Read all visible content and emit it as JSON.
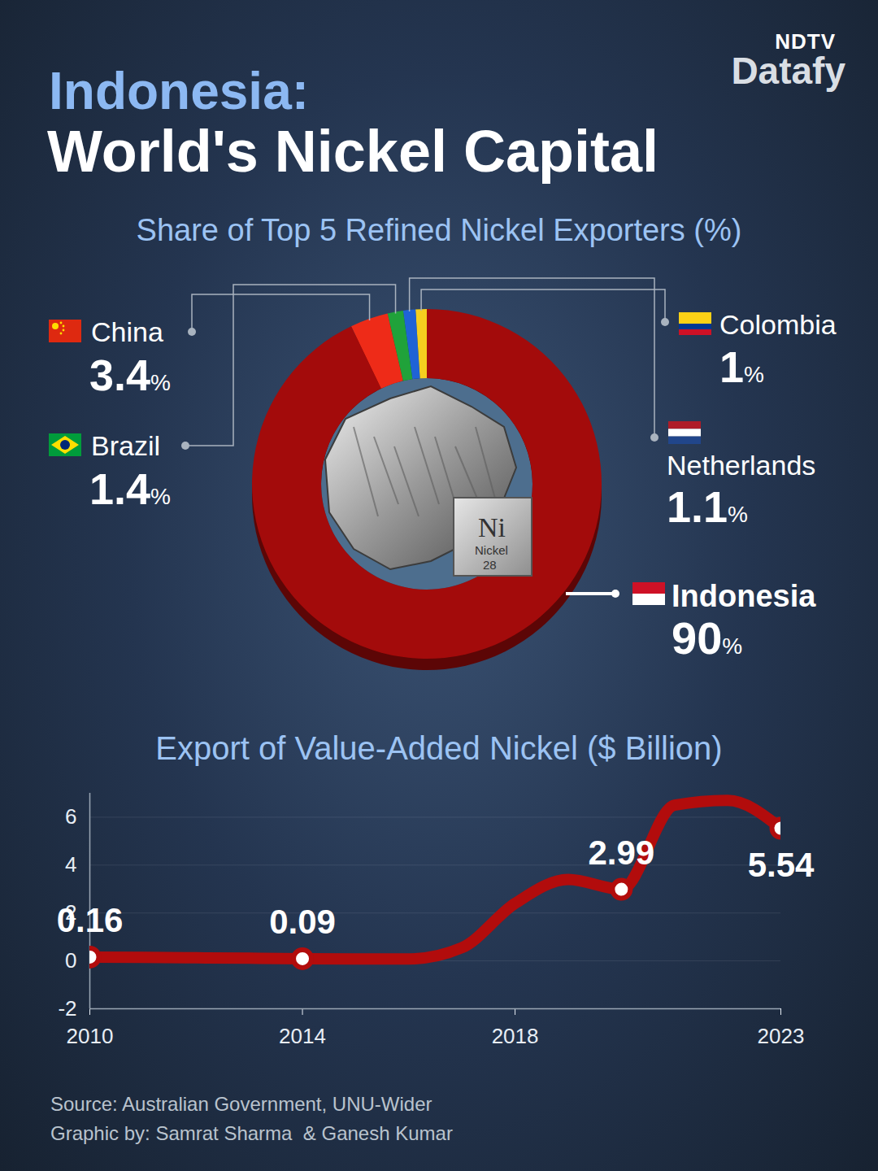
{
  "header": {
    "logo_top": "NDTV",
    "logo_bottom": "Datafy",
    "title_line1": "Indonesia:",
    "title_line2": "World's Nickel Capital"
  },
  "chart_data": [
    {
      "type": "pie",
      "title": "Share of Top 5 Refined Nickel Exporters (%)",
      "categories": [
        "Colombia",
        "Netherlands",
        "Brazil",
        "China",
        "Indonesia"
      ],
      "values": [
        1,
        1.1,
        1.4,
        3.4,
        90
      ],
      "value_labels": [
        "1%",
        "1.1%",
        "1.4%",
        "3.4%",
        "90%"
      ],
      "colors": [
        "#f5cf1f",
        "#1f63d6",
        "#20a23a",
        "#ee2b18",
        "#a30b0b"
      ],
      "data_labels": true
    },
    {
      "type": "line",
      "title": "Export of Value-Added Nickel ($ Billion)",
      "x": [
        2010,
        2011,
        2012,
        2013,
        2014,
        2015,
        2016,
        2017,
        2018,
        2019,
        2020,
        2021,
        2022,
        2023
      ],
      "values": [
        0.16,
        0.15,
        0.13,
        0.11,
        0.09,
        0.08,
        0.08,
        0.55,
        2.4,
        3.4,
        2.99,
        6.5,
        6.7,
        5.54
      ],
      "value_labels": [
        "0.16",
        null,
        null,
        null,
        "0.09",
        null,
        null,
        null,
        null,
        null,
        "2.99",
        null,
        null,
        "5.54"
      ],
      "color": "#b20c0c",
      "marker": "circle",
      "xlim": [
        2010,
        2023
      ],
      "xticks": [
        2010,
        2014,
        2018,
        2023
      ],
      "ylim": [
        -2,
        7
      ],
      "yticks": [
        -2,
        0,
        2,
        4,
        6
      ],
      "grid": true,
      "data_labels": true
    }
  ],
  "element_cube": {
    "symbol": "Ni",
    "name": "Nickel",
    "number": 28
  },
  "footer": {
    "source": "Source: Australian Government, UNU-Wider",
    "credit": "Graphic by: Samrat Sharma  & Ganesh Kumar"
  }
}
